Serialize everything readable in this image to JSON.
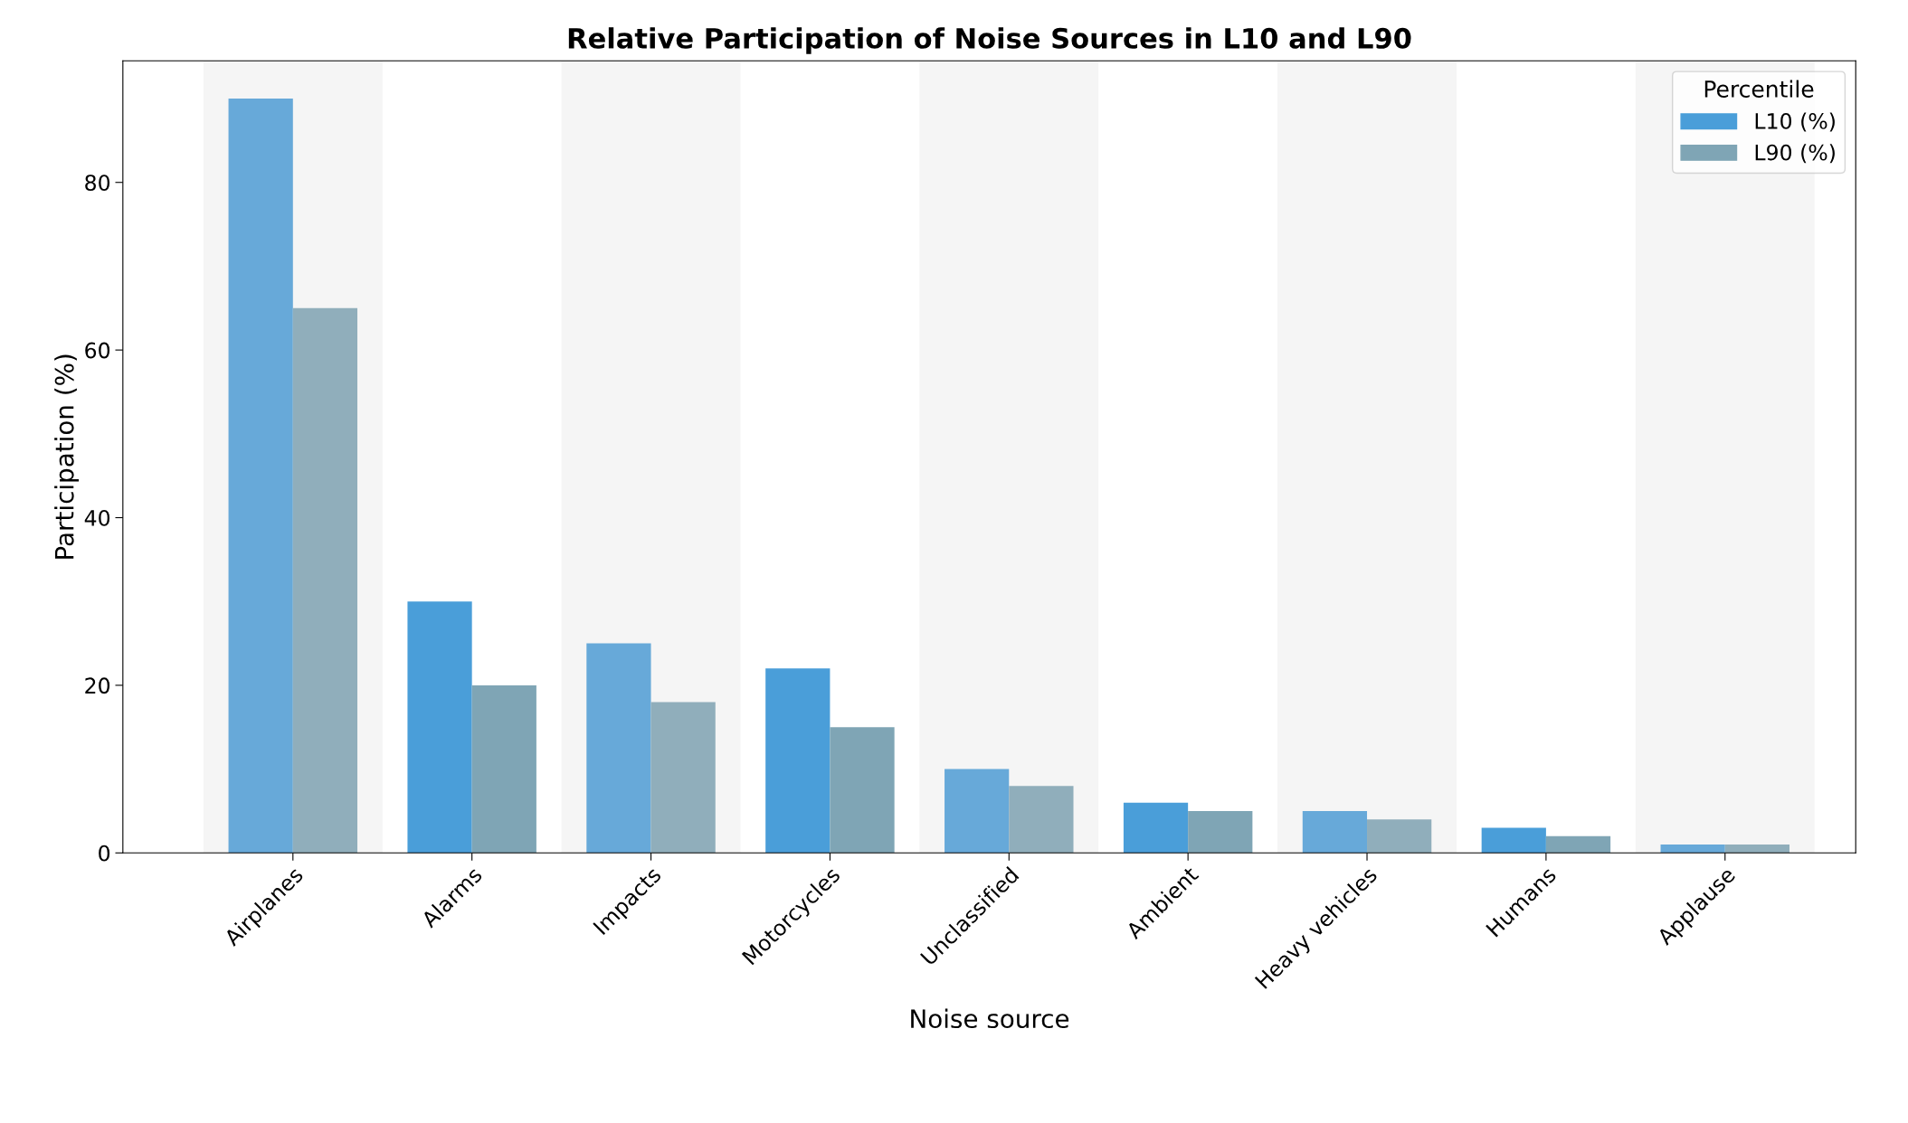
{
  "chart_data": {
    "type": "bar",
    "title": "Relative Participation of Noise Sources in L10 and L90",
    "xlabel": "Noise source",
    "ylabel": "Participation (%)",
    "legend_title": "Percentile",
    "legend": "top right",
    "grid": false,
    "categories": [
      "Airplanes",
      "Alarms",
      "Impacts",
      "Motorcycles",
      "Unclassified",
      "Ambient",
      "Heavy vehicles",
      "Humans",
      "Applause"
    ],
    "series": [
      {
        "name": "L10 (%)",
        "color": "#4a9ed9",
        "colors": [
          "#67a9d9",
          "#4a9ed9",
          "#67a9d9",
          "#4a9ed9",
          "#67a9d9",
          "#4a9ed9",
          "#67a9d9",
          "#4a9ed9",
          "#67a9d9"
        ],
        "values": [
          90,
          30,
          25,
          22,
          10,
          6,
          5,
          3,
          1
        ]
      },
      {
        "name": "L90 (%)",
        "color": "#7fa5b5",
        "colors": [
          "#90aebb",
          "#7fa5b5",
          "#90aebb",
          "#7fa5b5",
          "#90aebb",
          "#7fa5b5",
          "#90aebb",
          "#7fa5b5",
          "#90aebb"
        ],
        "values": [
          65,
          20,
          18,
          15,
          8,
          5,
          4,
          2,
          1
        ]
      }
    ],
    "bands": [
      {
        "axis": "x",
        "from": "Airplanes",
        "to": "Airplanes",
        "color": "#f5f5f5"
      },
      {
        "axis": "x",
        "from": "Impacts",
        "to": "Impacts",
        "color": "#f5f5f5"
      },
      {
        "axis": "x",
        "from": "Unclassified",
        "to": "Unclassified",
        "color": "#f5f5f5"
      },
      {
        "axis": "x",
        "from": "Heavy vehicles",
        "to": "Heavy vehicles",
        "color": "#f5f5f5"
      },
      {
        "axis": "x",
        "from": "Applause",
        "to": "Applause",
        "color": "#f5f5f5"
      }
    ],
    "ylim": [
      0,
      94.5
    ],
    "yticks": [
      0,
      20,
      40,
      60,
      80
    ]
  }
}
